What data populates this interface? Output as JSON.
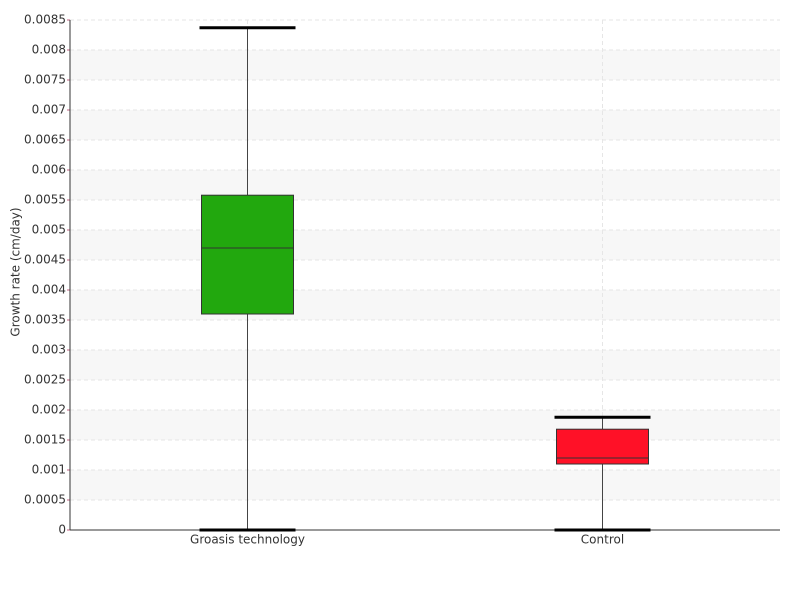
{
  "chart_data": {
    "type": "box",
    "y_label": "Growth rate (cm/day)",
    "categories": [
      "Groasis technology",
      "Control"
    ],
    "boxes": [
      {
        "min": 0,
        "q1": 0.0036,
        "median": 0.0047,
        "q3": 0.00558,
        "max": 0.00837,
        "color": "#22a80e"
      },
      {
        "min": 0,
        "q1": 0.0011,
        "median": 0.0012,
        "q3": 0.00168,
        "max": 0.00188,
        "color": "#ff1127"
      }
    ],
    "ylim": [
      0,
      0.0085
    ],
    "yticks": [
      0,
      0.0005,
      0.001,
      0.0015,
      0.002,
      0.0025,
      0.003,
      0.0035,
      0.004,
      0.0045,
      0.005,
      0.0055,
      0.006,
      0.0065,
      0.007,
      0.0075,
      0.008,
      0.0085
    ],
    "grid": true
  }
}
